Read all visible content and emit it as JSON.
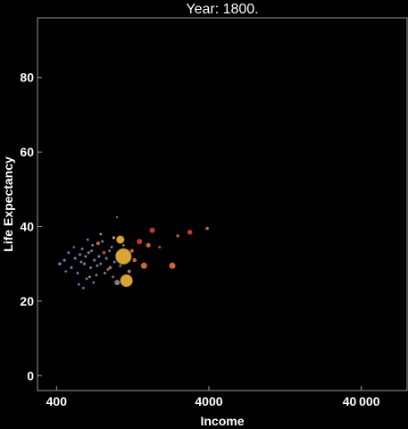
{
  "chart_data": {
    "type": "scatter",
    "title": "Year: 1800.",
    "xlabel": "Income",
    "ylabel": "Life Expectancy",
    "x_scale": "log",
    "xlim": [
      300,
      80000
    ],
    "ylim": [
      -4,
      96
    ],
    "x_ticks": [
      {
        "value": 400,
        "label": "400"
      },
      {
        "value": 4000,
        "label": "4000"
      },
      {
        "value": 40000,
        "label": "40 000"
      }
    ],
    "y_ticks": [
      {
        "value": 0,
        "label": "0"
      },
      {
        "value": 20,
        "label": "20"
      },
      {
        "value": 40,
        "label": "40"
      },
      {
        "value": 60,
        "label": "60"
      },
      {
        "value": 80,
        "label": "80"
      }
    ],
    "grid": false,
    "colors": {
      "background": "#000000",
      "frame": "#9a9a9a",
      "text": "#ffffff",
      "blue": "#6f86c6",
      "yellow": "#f2b63a",
      "orange": "#e8732e",
      "red": "#d8402f",
      "gray": "#8d8d8d"
    },
    "points": [
      {
        "x": 1100,
        "y": 32.0,
        "r": 9,
        "color": "yellow"
      },
      {
        "x": 1150,
        "y": 25.5,
        "r": 7,
        "color": "yellow"
      },
      {
        "x": 1050,
        "y": 36.5,
        "r": 4.5,
        "color": "yellow"
      },
      {
        "x": 1000,
        "y": 25.0,
        "r": 3,
        "color": "gray"
      },
      {
        "x": 1500,
        "y": 29.5,
        "r": 3.5,
        "color": "orange"
      },
      {
        "x": 2300,
        "y": 29.5,
        "r": 3.5,
        "color": "orange"
      },
      {
        "x": 1700,
        "y": 39.0,
        "r": 3,
        "color": "red"
      },
      {
        "x": 3000,
        "y": 38.5,
        "r": 2.8,
        "color": "red"
      },
      {
        "x": 1400,
        "y": 36.0,
        "r": 3,
        "color": "red"
      },
      {
        "x": 1600,
        "y": 35.0,
        "r": 2.5,
        "color": "orange"
      },
      {
        "x": 1300,
        "y": 31.0,
        "r": 2.2,
        "color": "orange"
      },
      {
        "x": 1250,
        "y": 33.5,
        "r": 2,
        "color": "orange"
      },
      {
        "x": 750,
        "y": 35.5,
        "r": 2,
        "color": "orange"
      },
      {
        "x": 820,
        "y": 33.0,
        "r": 2,
        "color": "red"
      },
      {
        "x": 3900,
        "y": 39.5,
        "r": 1.8,
        "color": "orange"
      },
      {
        "x": 2500,
        "y": 37.5,
        "r": 1.6,
        "color": "orange"
      },
      {
        "x": 1900,
        "y": 34.5,
        "r": 1.6,
        "color": "red"
      },
      {
        "x": 900,
        "y": 29.0,
        "r": 1.8,
        "color": "orange"
      },
      {
        "x": 1200,
        "y": 28.0,
        "r": 2,
        "color": "gray"
      },
      {
        "x": 950,
        "y": 37.0,
        "r": 1.6,
        "color": "yellow"
      },
      {
        "x": 420,
        "y": 30.0,
        "r": 1.8,
        "color": "blue"
      },
      {
        "x": 450,
        "y": 31.0,
        "r": 1.6,
        "color": "blue"
      },
      {
        "x": 480,
        "y": 33.0,
        "r": 1.5,
        "color": "blue"
      },
      {
        "x": 500,
        "y": 29.0,
        "r": 1.6,
        "color": "blue"
      },
      {
        "x": 530,
        "y": 31.5,
        "r": 1.6,
        "color": "blue"
      },
      {
        "x": 550,
        "y": 27.5,
        "r": 1.5,
        "color": "blue"
      },
      {
        "x": 570,
        "y": 32.5,
        "r": 1.6,
        "color": "blue"
      },
      {
        "x": 590,
        "y": 34.0,
        "r": 1.5,
        "color": "blue"
      },
      {
        "x": 610,
        "y": 30.0,
        "r": 1.6,
        "color": "blue"
      },
      {
        "x": 630,
        "y": 26.0,
        "r": 1.5,
        "color": "blue"
      },
      {
        "x": 650,
        "y": 33.0,
        "r": 1.6,
        "color": "blue"
      },
      {
        "x": 670,
        "y": 29.0,
        "r": 1.5,
        "color": "blue"
      },
      {
        "x": 690,
        "y": 35.0,
        "r": 1.5,
        "color": "blue"
      },
      {
        "x": 710,
        "y": 31.0,
        "r": 1.6,
        "color": "blue"
      },
      {
        "x": 730,
        "y": 27.0,
        "r": 1.5,
        "color": "blue"
      },
      {
        "x": 760,
        "y": 32.0,
        "r": 1.6,
        "color": "blue"
      },
      {
        "x": 780,
        "y": 30.0,
        "r": 1.5,
        "color": "blue"
      },
      {
        "x": 800,
        "y": 36.0,
        "r": 1.5,
        "color": "blue"
      },
      {
        "x": 850,
        "y": 31.5,
        "r": 1.6,
        "color": "blue"
      },
      {
        "x": 870,
        "y": 28.5,
        "r": 1.5,
        "color": "blue"
      },
      {
        "x": 920,
        "y": 34.5,
        "r": 1.5,
        "color": "blue"
      },
      {
        "x": 960,
        "y": 30.5,
        "r": 1.5,
        "color": "blue"
      },
      {
        "x": 1000,
        "y": 42.5,
        "r": 1.2,
        "color": "blue"
      },
      {
        "x": 1050,
        "y": 29.5,
        "r": 1.5,
        "color": "blue"
      },
      {
        "x": 560,
        "y": 24.5,
        "r": 1.4,
        "color": "blue"
      },
      {
        "x": 600,
        "y": 23.5,
        "r": 1.4,
        "color": "blue"
      },
      {
        "x": 700,
        "y": 25.0,
        "r": 1.4,
        "color": "blue"
      },
      {
        "x": 640,
        "y": 36.5,
        "r": 1.4,
        "color": "blue"
      },
      {
        "x": 520,
        "y": 34.5,
        "r": 1.3,
        "color": "blue"
      },
      {
        "x": 460,
        "y": 28.0,
        "r": 1.3,
        "color": "blue"
      },
      {
        "x": 580,
        "y": 30.5,
        "r": 1.5,
        "color": "gray"
      },
      {
        "x": 620,
        "y": 32.0,
        "r": 1.5,
        "color": "gray"
      },
      {
        "x": 680,
        "y": 33.5,
        "r": 1.5,
        "color": "gray"
      },
      {
        "x": 740,
        "y": 29.5,
        "r": 1.5,
        "color": "gray"
      },
      {
        "x": 830,
        "y": 27.5,
        "r": 1.5,
        "color": "gray"
      },
      {
        "x": 890,
        "y": 33.5,
        "r": 1.4,
        "color": "gray"
      },
      {
        "x": 1100,
        "y": 35.0,
        "r": 1.4,
        "color": "gray"
      },
      {
        "x": 780,
        "y": 38.0,
        "r": 1.3,
        "color": "yellow"
      },
      {
        "x": 660,
        "y": 26.5,
        "r": 1.3,
        "color": "yellow"
      },
      {
        "x": 940,
        "y": 26.5,
        "r": 1.4,
        "color": "orange"
      }
    ]
  }
}
